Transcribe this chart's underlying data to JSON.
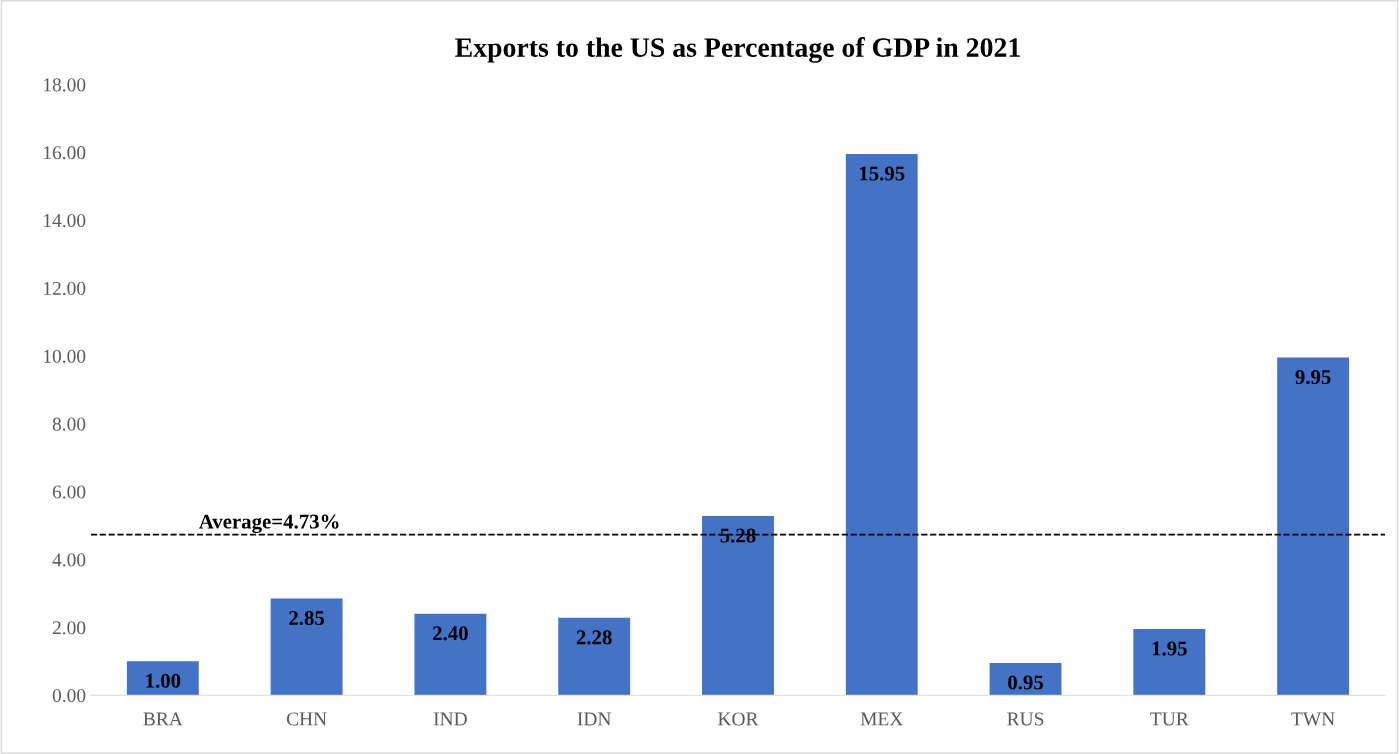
{
  "chart_data": {
    "type": "bar",
    "title": "Exports to the US as Percentage of GDP in 2021",
    "categories": [
      "BRA",
      "CHN",
      "IND",
      "IDN",
      "KOR",
      "MEX",
      "RUS",
      "TUR",
      "TWN"
    ],
    "values": [
      1.0,
      2.85,
      2.4,
      2.28,
      5.28,
      15.95,
      0.95,
      1.95,
      9.95
    ],
    "value_labels": [
      "1.00",
      "2.85",
      "2.40",
      "2.28",
      "5.28",
      "15.95",
      "0.95",
      "1.95",
      "9.95"
    ],
    "color": "#4472c4",
    "ylim": [
      0,
      18
    ],
    "yticks": [
      {
        "value": 0,
        "label": "0.00"
      },
      {
        "value": 2,
        "label": "2.00"
      },
      {
        "value": 4,
        "label": "4.00"
      },
      {
        "value": 6,
        "label": "6.00"
      },
      {
        "value": 8,
        "label": "8.00"
      },
      {
        "value": 10,
        "label": "10.00"
      },
      {
        "value": 12,
        "label": "12.00"
      },
      {
        "value": 14,
        "label": "14.00"
      },
      {
        "value": 16,
        "label": "16.00"
      },
      {
        "value": 18,
        "label": "18.00"
      }
    ],
    "ref_lines": [
      {
        "axis": "y",
        "value": 4.73,
        "label": "Average=4.73%",
        "color": "#000000",
        "line_style": "dashed"
      }
    ],
    "grid": false
  }
}
